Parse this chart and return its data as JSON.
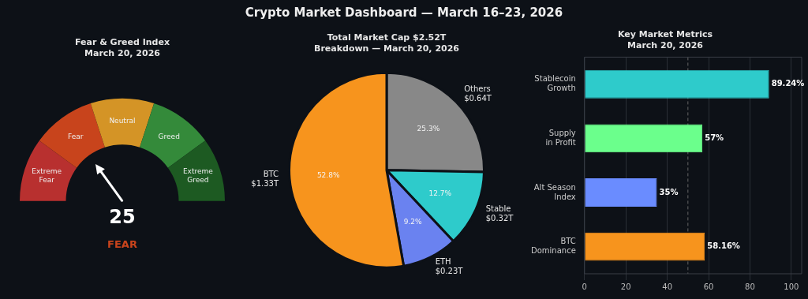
{
  "chart_data": [
    {
      "type": "other",
      "title": "Crypto Market Dashboard — March 16–23, 2026"
    },
    {
      "type": "donut",
      "title": "Fear & Greed Index",
      "subtitle": "March 20, 2026",
      "categories": [
        "Extreme\nFear",
        "Fear",
        "Neutral",
        "Greed",
        "Extreme\nGreed"
      ],
      "values": [
        20,
        20,
        20,
        20,
        20
      ],
      "colors": [
        "#b8302f",
        "#c8441c",
        "#d49426",
        "#348a3a",
        "#1d5a22"
      ],
      "needle": "Fear",
      "annotations": [
        "25",
        "FEAR"
      ],
      "legend": false
    },
    {
      "type": "pie",
      "title": "Total Market Cap $2.52T",
      "subtitle": "Breakdown — March 20, 2026",
      "categories": [
        "Others\n$0.64T",
        "Stable\n$0.32T",
        "ETH\n$0.23T",
        "BTC\n$1.33T"
      ],
      "values": [
        25.3,
        12.7,
        9.2,
        52.8
      ],
      "colors": [
        "#888888",
        "#2ecbcb",
        "#6a82f0",
        "#f7941d"
      ],
      "value_labels": [
        "25.3%",
        "12.7%",
        "9.2%",
        "52.8%"
      ],
      "legend": false
    },
    {
      "type": "bar",
      "orientation": "horizontal",
      "title": "Key Market Metrics",
      "subtitle": "March 20, 2026",
      "categories": [
        "Stablecoin\nGrowth",
        "Supply\nin Profit",
        "Alt Season\nIndex",
        "BTC\nDominance"
      ],
      "values": [
        89.24,
        57,
        35,
        58.16
      ],
      "colors": [
        "#2ecbcb",
        "#6bff8c",
        "#6a8cff",
        "#f7941d"
      ],
      "value_labels": [
        "89.24%",
        "57%",
        "35%",
        "58.16%"
      ],
      "xlim": [
        0,
        105
      ],
      "xticks": [
        0,
        20,
        40,
        60,
        80,
        100
      ],
      "grid": "x",
      "legend": false,
      "ref_lines": [
        {
          "axis": "x",
          "value": 50,
          "line_style": "dashed",
          "color": "#666666"
        }
      ]
    }
  ]
}
